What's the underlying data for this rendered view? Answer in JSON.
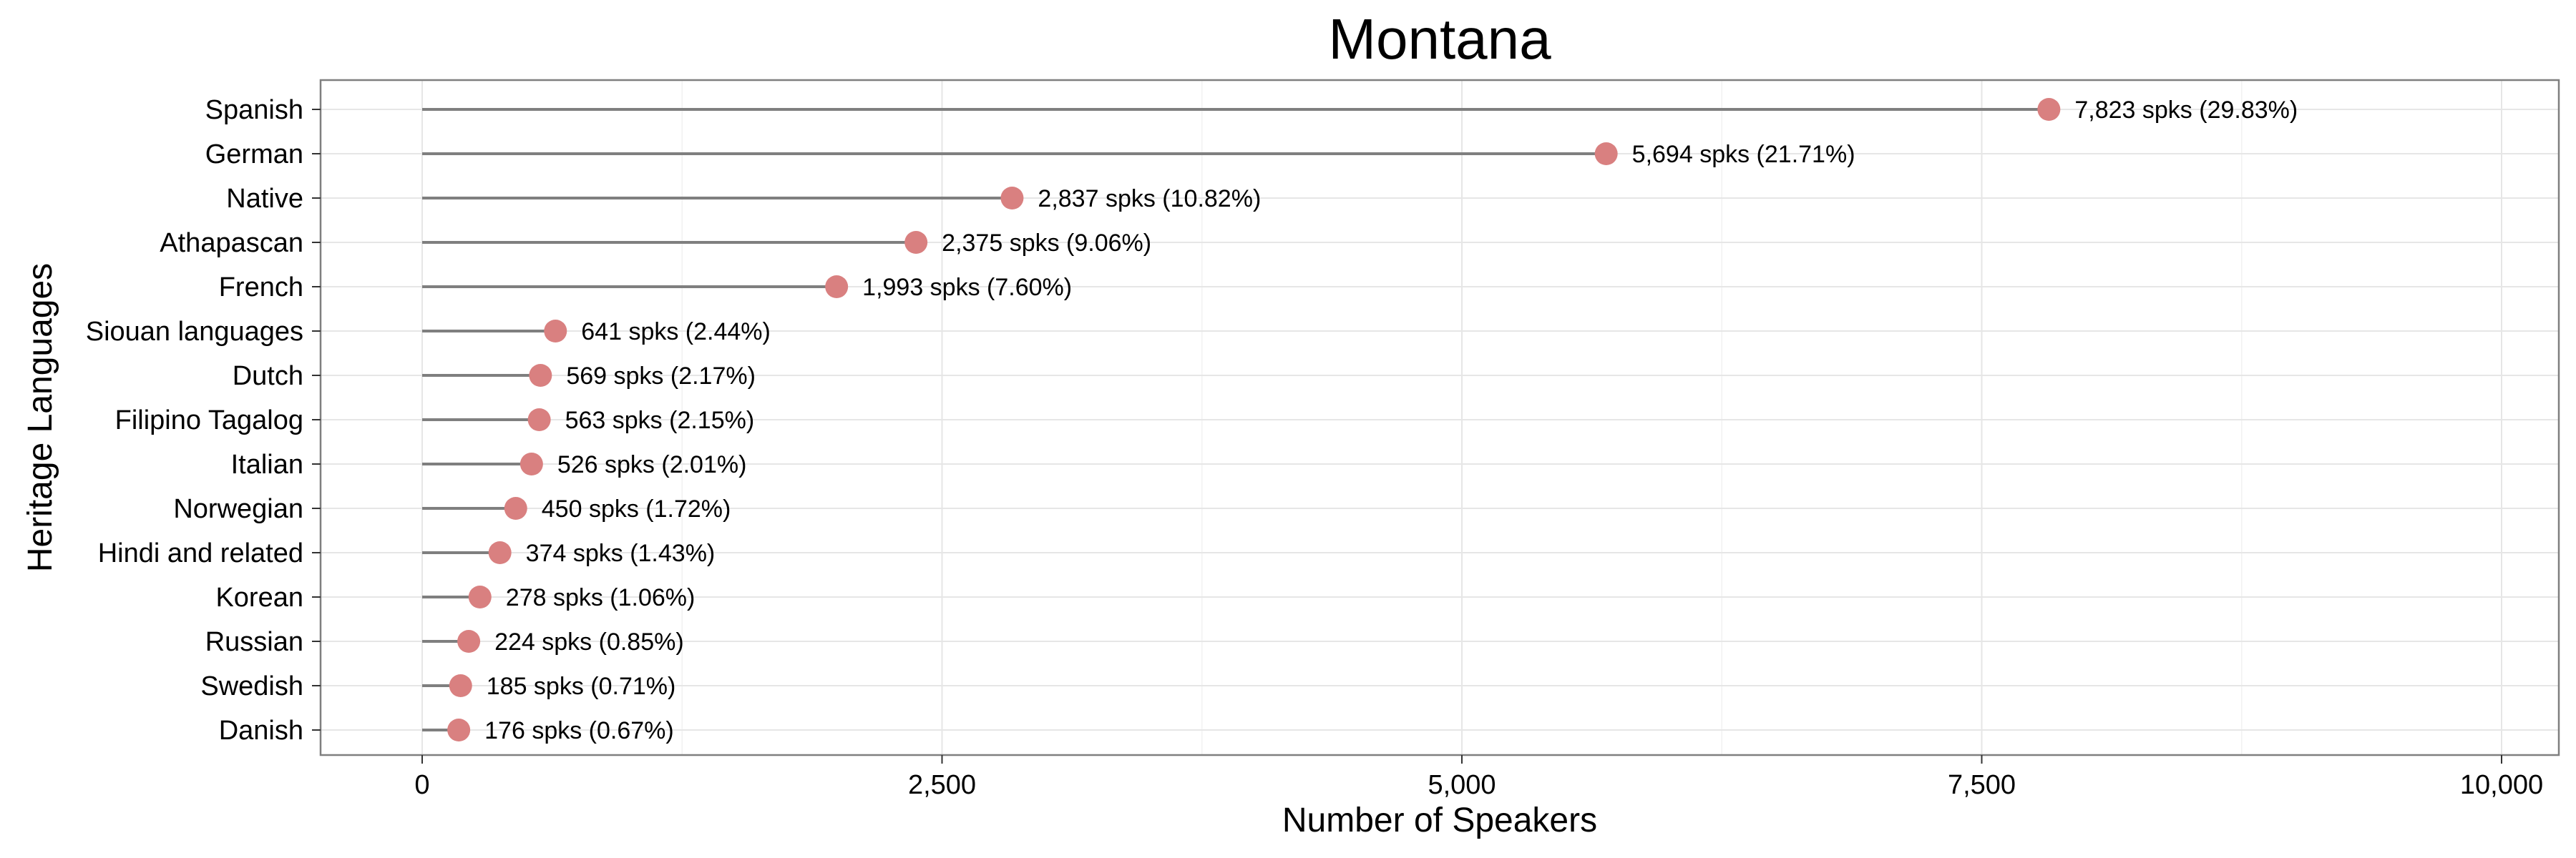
{
  "chart_data": {
    "type": "lollipop",
    "title": "Montana",
    "xlabel": "Number of Speakers",
    "ylabel": "Heritage Languages",
    "xlim": [
      0,
      10000
    ],
    "xticks": [
      0,
      2500,
      5000,
      7500,
      10000
    ],
    "xtick_labels": [
      "0",
      "2,500",
      "5,000",
      "7,500",
      "10,000"
    ],
    "grid": true,
    "orientation": "horizontal",
    "colors": {
      "point": "#d98080",
      "stem": "#7f7f7f",
      "panel_border": "#7f7f7f",
      "grid": "#e6e6e6"
    },
    "categories": [
      "Spanish",
      "German",
      "Native",
      "Athapascan",
      "French",
      "Siouan languages",
      "Dutch",
      "Filipino Tagalog",
      "Italian",
      "Norwegian",
      "Hindi and related",
      "Korean",
      "Russian",
      "Swedish",
      "Danish"
    ],
    "values": [
      7823,
      5694,
      2837,
      2375,
      1993,
      641,
      569,
      563,
      526,
      450,
      374,
      278,
      224,
      185,
      176
    ],
    "labels": [
      "7,823 spks (29.83%)",
      "5,694 spks (21.71%)",
      "2,837 spks (10.82%)",
      "2,375 spks (9.06%)",
      "1,993 spks (7.60%)",
      "641 spks (2.44%)",
      "569 spks (2.17%)",
      "563 spks (2.15%)",
      "526 spks (2.01%)",
      "450 spks (1.72%)",
      "374 spks (1.43%)",
      "278 spks (1.06%)",
      "224 spks (0.85%)",
      "185 spks (0.71%)",
      "176 spks (0.67%)"
    ]
  }
}
